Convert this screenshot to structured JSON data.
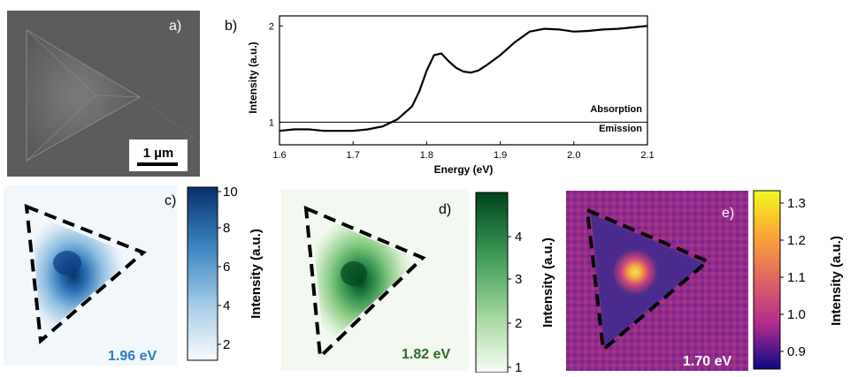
{
  "panels": {
    "a": {
      "label": "a)",
      "scalebar": "1 µm"
    },
    "b": {
      "label": "b)"
    },
    "c": {
      "label": "c)",
      "energy": "1.96 eV"
    },
    "d": {
      "label": "d)",
      "energy": "1.82 eV"
    },
    "e": {
      "label": "e)",
      "energy": "1.70 eV"
    }
  },
  "colorbars": [
    {
      "ticks": [
        "10",
        "8",
        "6",
        "4",
        "2"
      ],
      "label": "Intensity (a.u.)"
    },
    {
      "ticks": [
        "4",
        "3",
        "2",
        "1"
      ],
      "label": "Intensity (a.u.)"
    },
    {
      "ticks": [
        "1.3",
        "1.2",
        "1.1",
        "1.0",
        "0.9"
      ],
      "label": "Intensity (a.u.)"
    }
  ],
  "colors": {
    "blue_text": "#2f7cc0",
    "green_text": "#2f6b2a",
    "white_text": "#ffffff"
  },
  "chart_data": {
    "type": "line",
    "xlabel": "Energy (eV)",
    "ylabel": "Intensity (a.u.)",
    "xlim": [
      1.6,
      2.1
    ],
    "ylim": [
      0.85,
      2.15
    ],
    "log_y": true,
    "xticks": [
      "1.6",
      "1.7",
      "1.8",
      "1.9",
      "2.0",
      "2.1"
    ],
    "yticks": [
      "1",
      "2"
    ],
    "annotations": [
      "Absorption",
      "Emission"
    ],
    "reference_line": 1.0,
    "series": [
      {
        "x": [
          1.6,
          1.62,
          1.64,
          1.66,
          1.68,
          1.7,
          1.72,
          1.74,
          1.76,
          1.78,
          1.79,
          1.8,
          1.81,
          1.82,
          1.83,
          1.84,
          1.85,
          1.86,
          1.87,
          1.88,
          1.9,
          1.92,
          1.94,
          1.96,
          1.98,
          2.0,
          2.02,
          2.04,
          2.06,
          2.08,
          2.1
        ],
        "y": [
          0.94,
          0.95,
          0.95,
          0.94,
          0.94,
          0.94,
          0.95,
          0.97,
          1.02,
          1.12,
          1.25,
          1.45,
          1.62,
          1.64,
          1.55,
          1.48,
          1.44,
          1.43,
          1.45,
          1.5,
          1.62,
          1.78,
          1.92,
          1.96,
          1.95,
          1.92,
          1.93,
          1.95,
          1.96,
          1.98,
          2.0
        ]
      }
    ]
  }
}
